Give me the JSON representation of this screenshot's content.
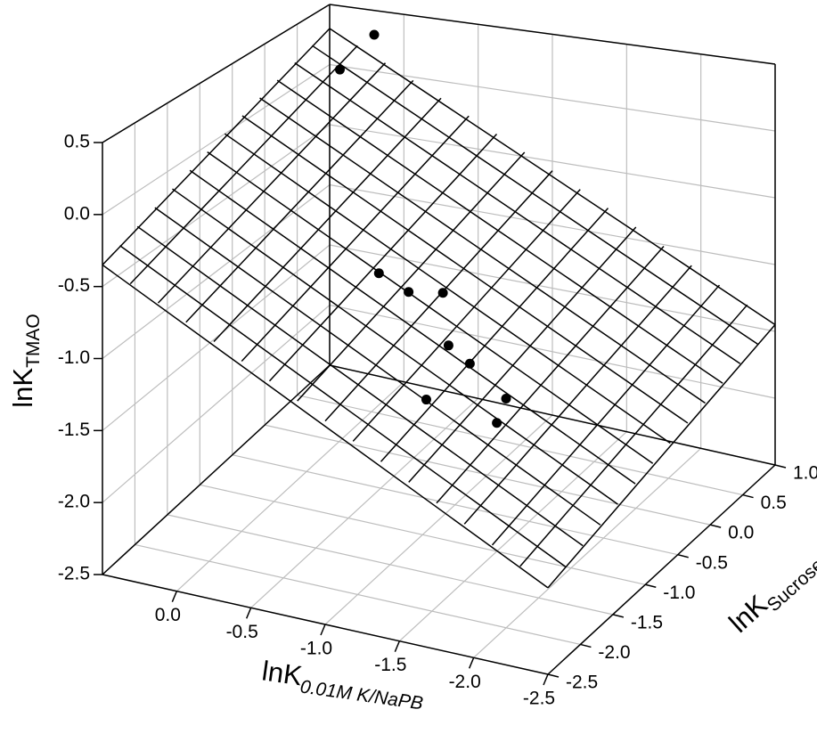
{
  "chart_data": {
    "type": "scatter3d",
    "xlabel": "lnK",
    "xlabel_sub": "0.01M K/NaPB",
    "ylabel": "lnK",
    "ylabel_sub": "Sucrose",
    "zlabel": "lnK",
    "zlabel_sub": "TMAO",
    "xlim": [
      0.5,
      -2.5
    ],
    "xticks": [
      {
        "value": 0,
        "label": "0.0"
      },
      -0.5,
      {
        "value": -1,
        "label": "-1.0"
      },
      -1.5,
      {
        "value": -2,
        "label": "-2.0"
      },
      -2.5
    ],
    "ylim": [
      -2.5,
      1.0
    ],
    "yticks": [
      -2.5,
      {
        "value": -2,
        "label": "-2.0"
      },
      -1.5,
      {
        "value": -1,
        "label": "-1.0"
      },
      -0.5,
      {
        "value": 0,
        "label": "0.0"
      },
      0.5,
      {
        "value": 1,
        "label": "1.0"
      }
    ],
    "zlim": [
      -2.5,
      0.5
    ],
    "zticks": [
      -2.5,
      {
        "value": -2,
        "label": "-2.0"
      },
      -1.5,
      {
        "value": -1,
        "label": "-1.0"
      },
      -0.5,
      {
        "value": 0,
        "label": "0.0"
      },
      0.5
    ],
    "grid": true,
    "color": "#000000",
    "x": [
      0.2,
      0.3,
      -0.4,
      -0.6,
      -0.7,
      -1.0,
      -1.1,
      -1.3,
      -1.2,
      -1.5
    ],
    "y": [
      1.0,
      0.7,
      -0.3,
      -0.3,
      0.0,
      -0.6,
      -0.5,
      -0.4,
      -1.4,
      -1.0
    ],
    "z": [
      0.3,
      0.1,
      -1.0,
      -1.1,
      -1.2,
      -1.3,
      -1.45,
      -1.7,
      -1.35,
      -1.6
    ],
    "surface": {
      "x": [
        0.5,
        -2.5
      ],
      "y": [
        -2.5,
        1.0
      ],
      "z": [
        [
          -0.35,
          0.3
        ],
        [
          -1.95,
          -1.45
        ]
      ],
      "divisions": [
        16,
        13
      ]
    }
  }
}
